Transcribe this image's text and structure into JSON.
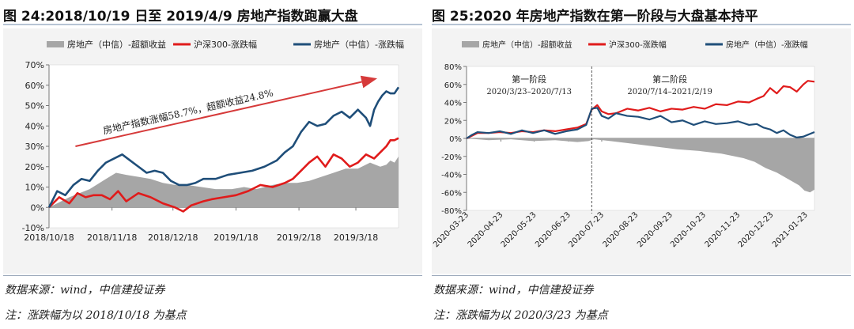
{
  "charts": [
    {
      "id": "left",
      "title": "图 24:2018/10/19 日至 2019/4/9 房地产指数跑赢大盘",
      "source": "数据来源：wind，中信建投证券",
      "note": "注：涨跌幅为以 2018/10/18 为基点",
      "colors": {
        "area": "#a6a6a6",
        "red": "#e01b1b",
        "blue": "#1f4e79",
        "arrow": "#d63a3a"
      },
      "chart_data": {
        "type": "line",
        "xlim": [
          0,
          172
        ],
        "ylim": [
          -10,
          70
        ],
        "y_ticks": [
          -10,
          0,
          10,
          20,
          30,
          40,
          50,
          60,
          70
        ],
        "y_tick_labels": [
          "-10%",
          "0%",
          "10%",
          "20%",
          "30%",
          "40%",
          "50%",
          "60%",
          "70%"
        ],
        "x_ticks": [
          0,
          31,
          61,
          92,
          123,
          151
        ],
        "x_tick_labels": [
          "2018/10/18",
          "2018/11/18",
          "2018/12/18",
          "2019/1/18",
          "2019/2/18",
          "2019/3/18"
        ],
        "legend": "top",
        "annotation": "房地产指数涨幅58.7%，超额收益24.8%",
        "series": [
          {
            "name": "房地产（中信）-超额收益",
            "kind": "area",
            "color": "#a6a6a6",
            "x": [
              0,
              10,
              20,
              28,
              33,
              38,
              44,
              50,
              56,
              62,
              68,
              75,
              82,
              90,
              96,
              102,
              110,
              116,
              122,
              128,
              134,
              140,
              146,
              152,
              158,
              163,
              166,
              168,
              170,
              172
            ],
            "y": [
              0,
              5,
              9,
              14,
              17,
              16,
              15,
              14,
              12,
              11,
              11,
              10,
              9,
              9,
              10,
              9,
              11,
              12,
              12,
              13,
              15,
              17,
              19,
              19,
              22,
              20,
              21,
              23,
              22,
              25
            ]
          },
          {
            "name": "沪深300-涨跌幅",
            "kind": "line",
            "color": "#e01b1b",
            "x": [
              0,
              5,
              10,
              14,
              18,
              22,
              26,
              30,
              34,
              38,
              44,
              50,
              56,
              62,
              66,
              70,
              76,
              80,
              86,
              92,
              98,
              104,
              110,
              116,
              120,
              124,
              128,
              132,
              136,
              140,
              144,
              148,
              152,
              156,
              160,
              163,
              166,
              168,
              170,
              172
            ],
            "y": [
              0,
              5,
              2,
              7,
              5,
              6,
              6,
              4,
              8,
              3,
              7,
              5,
              2,
              0,
              -2,
              1,
              3,
              4,
              5,
              6,
              8,
              11,
              10,
              12,
              14,
              18,
              22,
              25,
              20,
              26,
              24,
              20,
              22,
              26,
              24,
              27,
              30,
              33,
              33,
              34
            ]
          },
          {
            "name": "房地产（中信）-涨跌幅",
            "kind": "line",
            "color": "#1f4e79",
            "x": [
              0,
              4,
              8,
              12,
              16,
              20,
              24,
              28,
              32,
              36,
              40,
              44,
              48,
              52,
              56,
              60,
              64,
              68,
              72,
              76,
              82,
              88,
              94,
              100,
              106,
              112,
              116,
              120,
              124,
              128,
              132,
              136,
              140,
              144,
              148,
              152,
              156,
              158,
              160,
              162,
              164,
              166,
              168,
              170,
              172
            ],
            "y": [
              0,
              8,
              6,
              11,
              14,
              13,
              18,
              22,
              24,
              26,
              23,
              20,
              17,
              18,
              17,
              13,
              11,
              11,
              12,
              14,
              14,
              16,
              17,
              18,
              20,
              23,
              27,
              30,
              37,
              42,
              40,
              41,
              45,
              47,
              44,
              48,
              44,
              40,
              48,
              52,
              55,
              57,
              56,
              56,
              59
            ]
          }
        ]
      }
    },
    {
      "id": "right",
      "title": "图 25:2020 年房地产指数在第一阶段与大盘基本持平",
      "source": "数据来源：wind，中信建投证券",
      "note": "注：涨跌幅为以 2020/3/23 为基点",
      "colors": {
        "area": "#a6a6a6",
        "red": "#e01b1b",
        "blue": "#1f4e79",
        "divider": "#555555"
      },
      "chart_data": {
        "type": "line",
        "xlim": [
          0,
          314
        ],
        "ylim": [
          -80,
          80
        ],
        "y_ticks": [
          -80,
          -60,
          -40,
          -20,
          0,
          20,
          40,
          60,
          80
        ],
        "y_tick_labels": [
          "-80%",
          "-60%",
          "-40%",
          "-20%",
          "0%",
          "20%",
          "40%",
          "60%",
          "80%"
        ],
        "x_ticks": [
          0,
          31,
          61,
          92,
          122,
          153,
          184,
          214,
          245,
          275,
          306
        ],
        "x_tick_labels": [
          "2020-03-23",
          "2020-04-23",
          "2020-05-23",
          "2020-06-23",
          "2020-07-23",
          "2020-08-23",
          "2020-09-23",
          "2020-10-23",
          "2020-11-23",
          "2020-12-23",
          "2021-01-23"
        ],
        "legend": "top",
        "phase_divider_x": 113,
        "phases": [
          {
            "name": "第一阶段",
            "range": "2020/3/23–2020/7/13"
          },
          {
            "name": "第二阶段",
            "range": "2020/7/14–2021/2/19"
          }
        ],
        "series": [
          {
            "name": "房地产（中信）-超额收益",
            "kind": "area",
            "color": "#a6a6a6",
            "x": [
              0,
              20,
              40,
              60,
              80,
              100,
              110,
              115,
              130,
              150,
              170,
              190,
              210,
              230,
              250,
              260,
              270,
              280,
              290,
              300,
              305,
              310,
              314
            ],
            "y": [
              0,
              -2,
              -1,
              -3,
              -2,
              -4,
              -3,
              -1,
              -3,
              -6,
              -9,
              -12,
              -14,
              -17,
              -22,
              -26,
              -33,
              -38,
              -45,
              -52,
              -58,
              -60,
              -57
            ]
          },
          {
            "name": "沪深300-涨跌幅",
            "kind": "line",
            "color": "#e01b1b",
            "x": [
              0,
              5,
              10,
              20,
              30,
              40,
              50,
              60,
              70,
              80,
              90,
              100,
              108,
              113,
              118,
              122,
              128,
              135,
              145,
              155,
              165,
              175,
              185,
              195,
              205,
              215,
              225,
              235,
              245,
              255,
              262,
              268,
              274,
              280,
              286,
              292,
              298,
              304,
              308,
              314
            ],
            "y": [
              0,
              3,
              6,
              6,
              7,
              6,
              8,
              7,
              9,
              8,
              10,
              12,
              16,
              32,
              37,
              30,
              27,
              28,
              33,
              31,
              34,
              30,
              33,
              32,
              35,
              33,
              38,
              37,
              41,
              40,
              44,
              47,
              56,
              50,
              58,
              57,
              52,
              60,
              64,
              63
            ]
          },
          {
            "name": "房地产（中信）-涨跌幅",
            "kind": "line",
            "color": "#1f4e79",
            "x": [
              0,
              5,
              10,
              20,
              30,
              40,
              50,
              60,
              70,
              80,
              90,
              100,
              108,
              113,
              118,
              122,
              128,
              135,
              145,
              155,
              165,
              175,
              185,
              195,
              205,
              215,
              225,
              235,
              245,
              255,
              262,
              268,
              274,
              280,
              286,
              292,
              298,
              304,
              308,
              314
            ],
            "y": [
              0,
              4,
              7,
              6,
              8,
              5,
              9,
              6,
              9,
              5,
              8,
              10,
              15,
              33,
              34,
              25,
              22,
              28,
              25,
              24,
              21,
              25,
              18,
              20,
              15,
              19,
              16,
              17,
              19,
              15,
              16,
              12,
              10,
              6,
              9,
              4,
              1,
              2,
              4,
              7
            ]
          }
        ]
      }
    }
  ]
}
